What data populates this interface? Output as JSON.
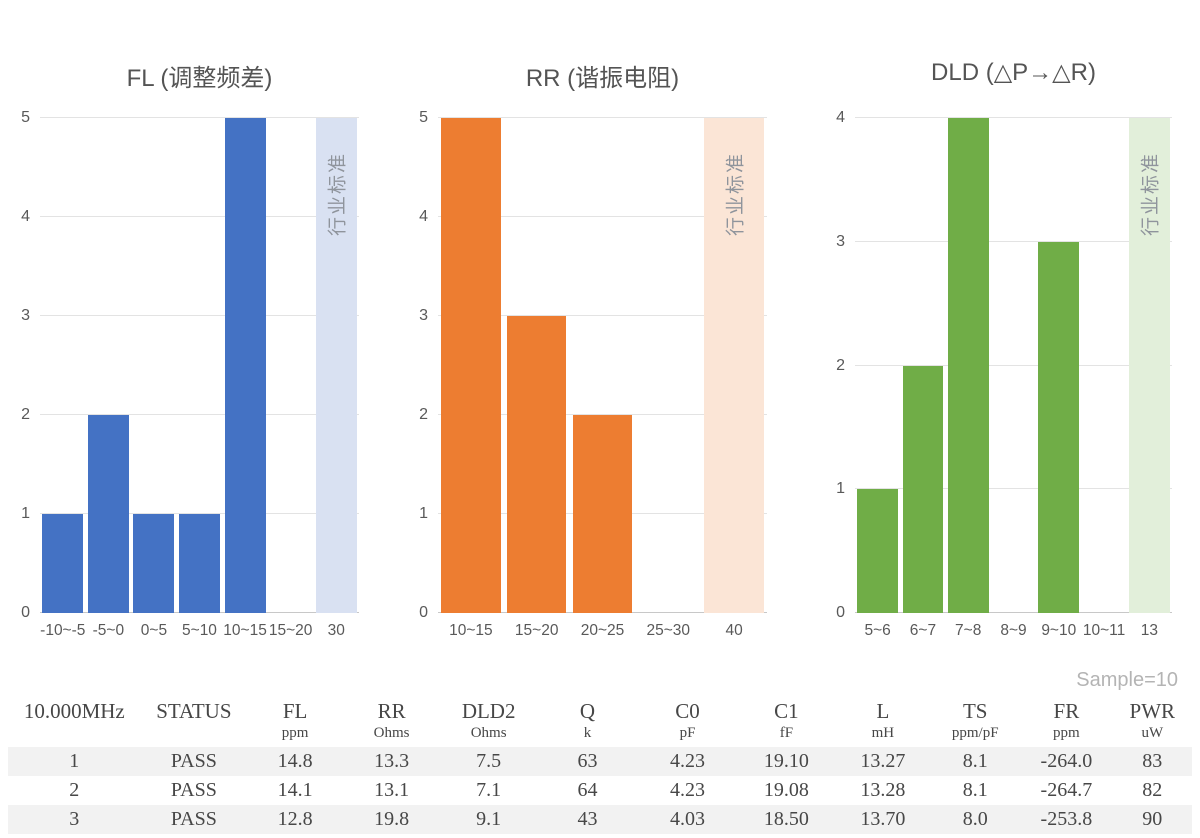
{
  "chart_data": [
    {
      "type": "bar",
      "title": "FL (调整频差)",
      "categories": [
        "-10~-5",
        "-5~0",
        "0~5",
        "5~10",
        "10~15",
        "15~20",
        "30"
      ],
      "values": [
        1,
        2,
        1,
        1,
        5,
        0,
        0
      ],
      "standard_bar": {
        "index": 6,
        "category": "30",
        "height": 5,
        "label": "行业标准"
      },
      "ylim": [
        0,
        5
      ],
      "bar_color": "#4472C4",
      "standard_color": "#D9E1F2",
      "grid": true,
      "legend": "none"
    },
    {
      "type": "bar",
      "title": "RR (谐振电阻)",
      "categories": [
        "10~15",
        "15~20",
        "20~25",
        "25~30",
        "40"
      ],
      "values": [
        5,
        3,
        2,
        0,
        0
      ],
      "standard_bar": {
        "index": 4,
        "category": "40",
        "height": 5,
        "label": "行业标准"
      },
      "ylim": [
        0,
        5
      ],
      "bar_color": "#ED7D31",
      "standard_color": "#FBE5D6",
      "grid": true,
      "legend": "none"
    },
    {
      "type": "bar",
      "title": "DLD (△P→△R)",
      "categories": [
        "5~6",
        "6~7",
        "7~8",
        "8~9",
        "9~10",
        "10~11",
        "13"
      ],
      "values": [
        1,
        2,
        4,
        0,
        3,
        0,
        0
      ],
      "standard_bar": {
        "index": 6,
        "category": "13",
        "height": 4,
        "label": "行业标准"
      },
      "ylim": [
        0,
        4
      ],
      "bar_color": "#70AD47",
      "standard_color": "#E2EFDA",
      "grid": true,
      "legend": "none"
    }
  ],
  "table": {
    "sample_note": "Sample=10",
    "columns": [
      {
        "label": "10.000MHz",
        "unit": ""
      },
      {
        "label": "STATUS",
        "unit": ""
      },
      {
        "label": "FL",
        "unit": "ppm"
      },
      {
        "label": "RR",
        "unit": "Ohms"
      },
      {
        "label": "DLD2",
        "unit": "Ohms"
      },
      {
        "label": "Q",
        "unit": "k"
      },
      {
        "label": "C0",
        "unit": "pF"
      },
      {
        "label": "C1",
        "unit": "fF"
      },
      {
        "label": "L",
        "unit": "mH"
      },
      {
        "label": "TS",
        "unit": "ppm/pF"
      },
      {
        "label": "FR",
        "unit": "ppm"
      },
      {
        "label": "PWR",
        "unit": "uW"
      }
    ],
    "rows": [
      [
        "1",
        "PASS",
        "14.8",
        "13.3",
        "7.5",
        "63",
        "4.23",
        "19.10",
        "13.27",
        "8.1",
        "-264.0",
        "83"
      ],
      [
        "2",
        "PASS",
        "14.1",
        "13.1",
        "7.1",
        "64",
        "4.23",
        "19.08",
        "13.28",
        "8.1",
        "-264.7",
        "82"
      ],
      [
        "3",
        "PASS",
        "12.8",
        "19.8",
        "9.1",
        "43",
        "4.03",
        "18.50",
        "13.70",
        "8.0",
        "-253.8",
        "90"
      ]
    ]
  }
}
